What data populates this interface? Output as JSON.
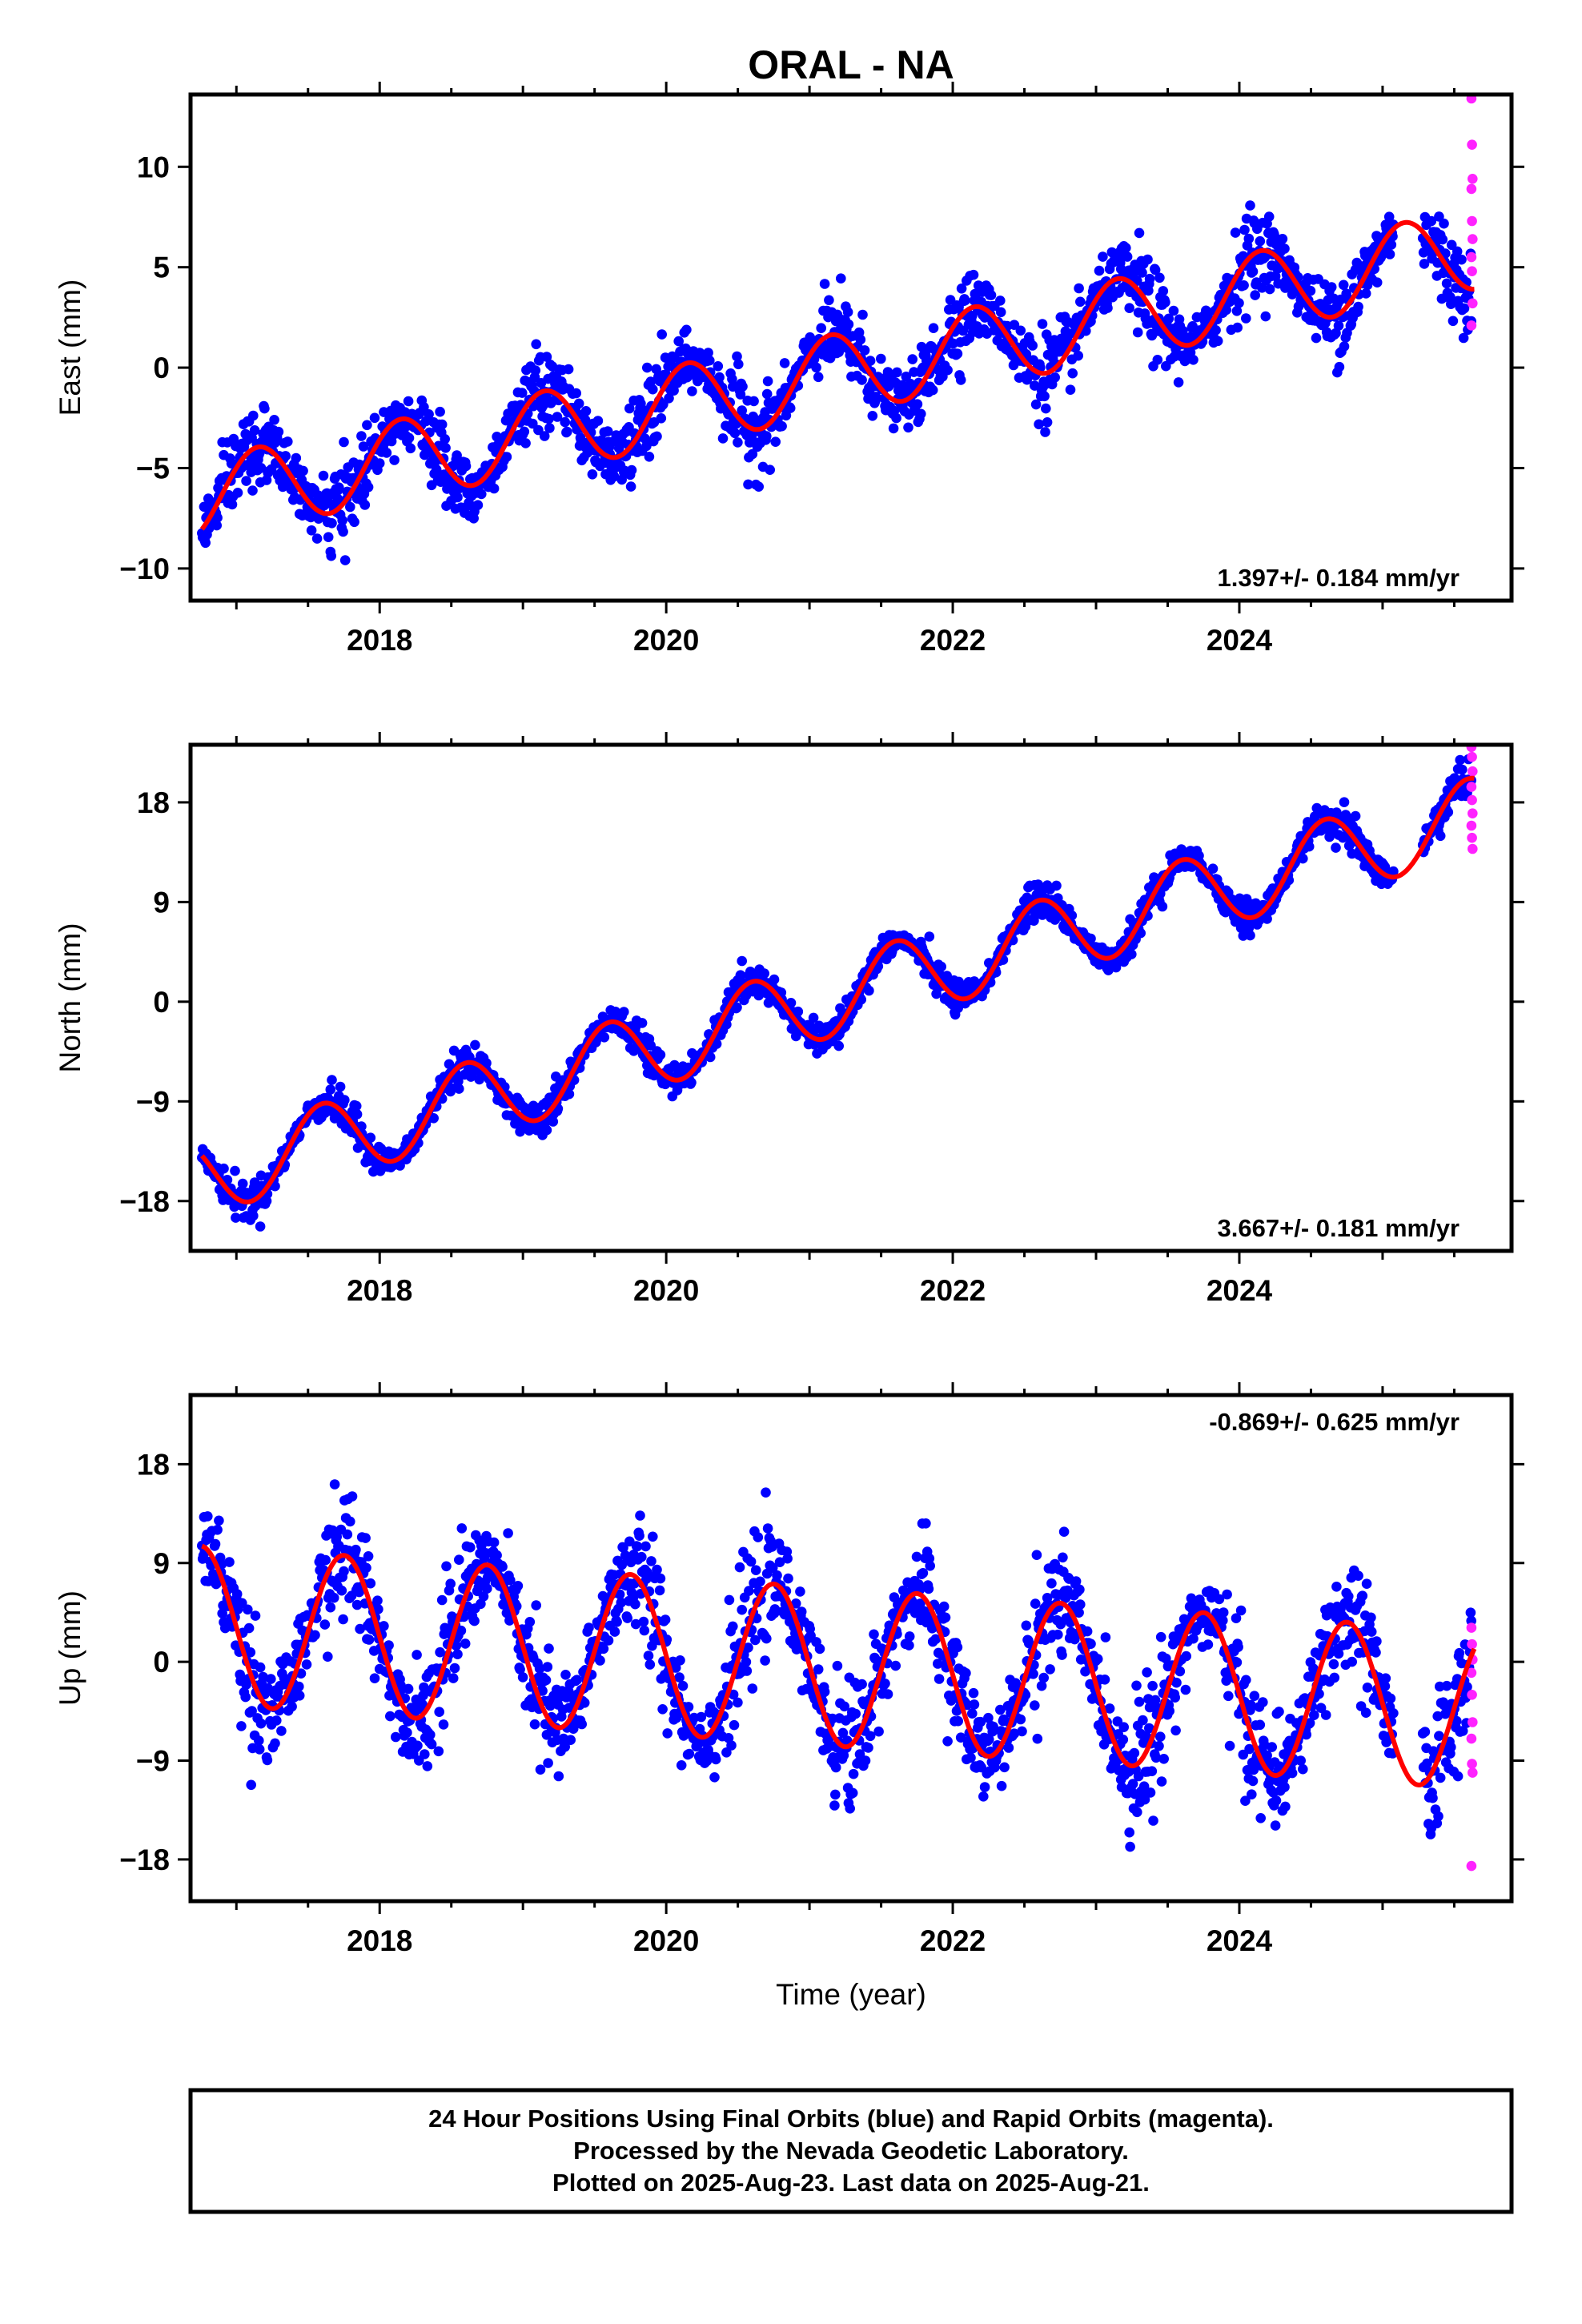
{
  "chart_data": {
    "type": "scatter",
    "title": "ORAL - NA",
    "xlabel": "Time (year)",
    "xlim": [
      2016.68,
      2025.9
    ],
    "x_tick_labels": [
      "2018",
      "2020",
      "2022",
      "2024"
    ],
    "x_tick_values": [
      2018,
      2020,
      2022,
      2024
    ],
    "x_minor_ticks": [
      2017,
      2018,
      2019,
      2020,
      2021,
      2022,
      2023,
      2024,
      2025
    ],
    "legend": "none",
    "colors": {
      "final_orbits": "#0000ff",
      "rapid_orbits": "#ff22ff",
      "fit": "#ff0000",
      "frame": "#000000"
    },
    "panels": [
      {
        "ylabel": "East (mm)",
        "ylim": [
          -11.6,
          13.6
        ],
        "y_tick_values": [
          -10,
          -5,
          0,
          5,
          10
        ],
        "y_tick_labels": [
          "−10",
          "−5",
          "0",
          "5",
          "10"
        ],
        "rate_label": "1.397+/- 0.184 mm/yr",
        "rate_position": "bottom-right",
        "model": {
          "ref_year": 2021.2,
          "offset": -0.3,
          "slope": 1.397,
          "annual_amp": 2.0,
          "annual_phase_year": 2016.9,
          "noise": 1.15
        },
        "rapid": [
          13.4,
          11.1,
          9.4,
          8.9,
          7.3,
          6.4,
          5.5,
          4.8,
          3.2,
          2.1
        ]
      },
      {
        "ylabel": "North (mm)",
        "ylim": [
          -22.5,
          23.2
        ],
        "y_tick_values": [
          -18,
          -9,
          0,
          9,
          18
        ],
        "y_tick_labels": [
          "−18",
          "−9",
          "0",
          "9",
          "18"
        ],
        "rate_label": "3.667+/- 0.181 mm/yr",
        "rate_position": "bottom-right",
        "model": {
          "ref_year": 2021.2,
          "offset": 0.5,
          "slope": 3.667,
          "annual_amp": 3.5,
          "annual_phase_year": 2017.35,
          "noise": 0.9
        },
        "rapid": [
          23.0,
          22.1,
          20.8,
          19.4,
          18.2,
          17.0,
          15.9,
          14.8,
          13.8
        ]
      },
      {
        "ylabel": "Up (mm)",
        "ylim": [
          -21.8,
          24.3
        ],
        "y_tick_values": [
          -18,
          -9,
          0,
          9,
          18
        ],
        "y_tick_labels": [
          "−18",
          "−9",
          "0",
          "9",
          "18"
        ],
        "rate_label": "-0.869+/- 0.625 mm/yr",
        "rate_position": "top-right",
        "model": {
          "ref_year": 2021.2,
          "offset": -0.5,
          "slope": -0.869,
          "annual_amp": 7.2,
          "annual_phase_year": 2016.5,
          "noise": 3.2
        },
        "rapid": [
          3.1,
          1.6,
          0.2,
          -1.0,
          -3.0,
          -5.5,
          -7.0,
          -9.3,
          -10.1,
          -18.6
        ]
      }
    ]
  },
  "caption": {
    "lines": [
      "24 Hour Positions Using Final Orbits (blue) and Rapid Orbits (magenta).",
      "Processed by the Nevada Geodetic Laboratory.",
      "Plotted on 2025-Aug-23. Last data on 2025-Aug-21."
    ]
  }
}
